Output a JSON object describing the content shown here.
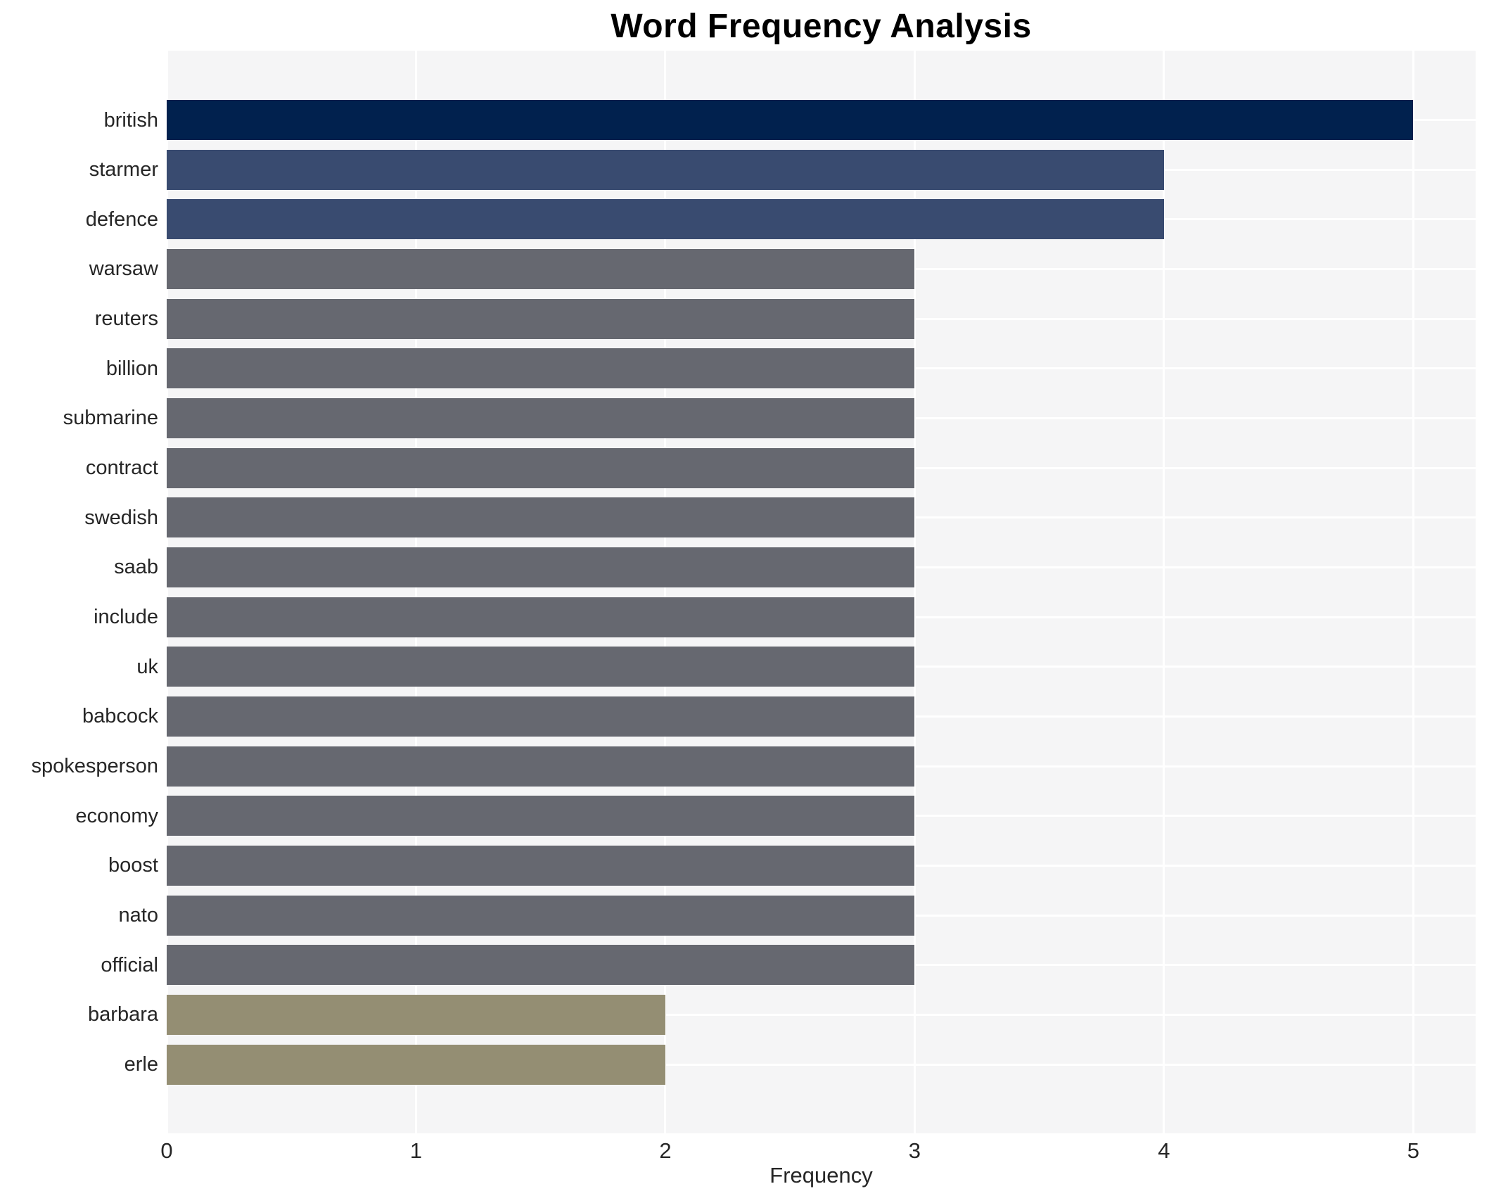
{
  "chart_data": {
    "type": "bar",
    "orientation": "horizontal",
    "title": "Word Frequency Analysis",
    "xlabel": "Frequency",
    "ylabel": "",
    "categories": [
      "british",
      "starmer",
      "defence",
      "warsaw",
      "reuters",
      "billion",
      "submarine",
      "contract",
      "swedish",
      "saab",
      "include",
      "uk",
      "babcock",
      "spokesperson",
      "economy",
      "boost",
      "nato",
      "official",
      "barbara",
      "erle"
    ],
    "values": [
      5,
      4,
      4,
      3,
      3,
      3,
      3,
      3,
      3,
      3,
      3,
      3,
      3,
      3,
      3,
      3,
      3,
      3,
      2,
      2
    ],
    "x_ticks": [
      "0",
      "1",
      "2",
      "3",
      "4",
      "5"
    ],
    "xlim": [
      0,
      5.25
    ],
    "grid": true,
    "legend": false,
    "colors": {
      "bar_color_by_value": {
        "5": "#01214e",
        "4": "#394b70",
        "3": "#666870",
        "2": "#948e73"
      },
      "plot_background": "#f5f5f6",
      "gridline": "#ffffff",
      "text": "#262626",
      "title_text": "#000000"
    }
  }
}
